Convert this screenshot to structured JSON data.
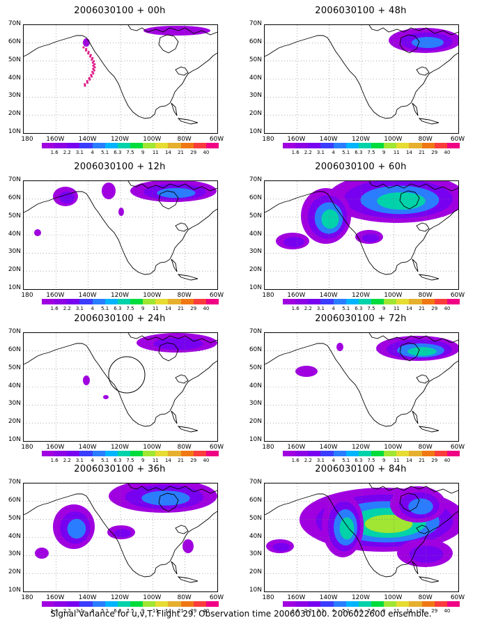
{
  "panels": [
    {
      "id": "p00",
      "title": "2006030100 + 00h",
      "col": 0,
      "row": 0,
      "level": 0
    },
    {
      "id": "p48",
      "title": "2006030100 + 48h",
      "col": 1,
      "row": 0,
      "level": 4
    },
    {
      "id": "p12",
      "title": "2006030100 + 12h",
      "col": 0,
      "row": 1,
      "level": 1
    },
    {
      "id": "p60",
      "title": "2006030100 + 60h",
      "col": 1,
      "row": 1,
      "level": 5
    },
    {
      "id": "p24",
      "title": "2006030100 + 24h",
      "col": 0,
      "row": 2,
      "level": 2
    },
    {
      "id": "p72",
      "title": "2006030100 + 72h",
      "col": 1,
      "row": 2,
      "level": 6
    },
    {
      "id": "p36",
      "title": "2006030100 + 36h",
      "col": 0,
      "row": 3,
      "level": 3
    },
    {
      "id": "p84",
      "title": "2006030100 + 84h",
      "col": 1,
      "row": 3,
      "level": 7
    }
  ],
  "lat_labels": [
    "70N",
    "60N",
    "50N",
    "40N",
    "30N",
    "20N",
    "10N"
  ],
  "lon_labels": [
    "180",
    "160W",
    "140W",
    "120W",
    "100W",
    "80W",
    "60W"
  ],
  "colorbar": {
    "labels": [
      "1.6",
      "2.2",
      "3.1",
      "4",
      "5.1",
      "6.3",
      "7.5",
      "9",
      "11",
      "14",
      "21",
      "29",
      "40"
    ],
    "colors": [
      "#a000e0",
      "#8c00e6",
      "#7800f0",
      "#3c3cff",
      "#2a7dff",
      "#00b4ff",
      "#00d2aa",
      "#00dc3c",
      "#a0e632",
      "#e6dc32",
      "#e6af2d",
      "#f07814",
      "#fa3c3c",
      "#f00082"
    ]
  },
  "caption": "Signal Variance for u,v,T. Flight 29. Observation time 2006030100. 2006022600 ensemble."
}
